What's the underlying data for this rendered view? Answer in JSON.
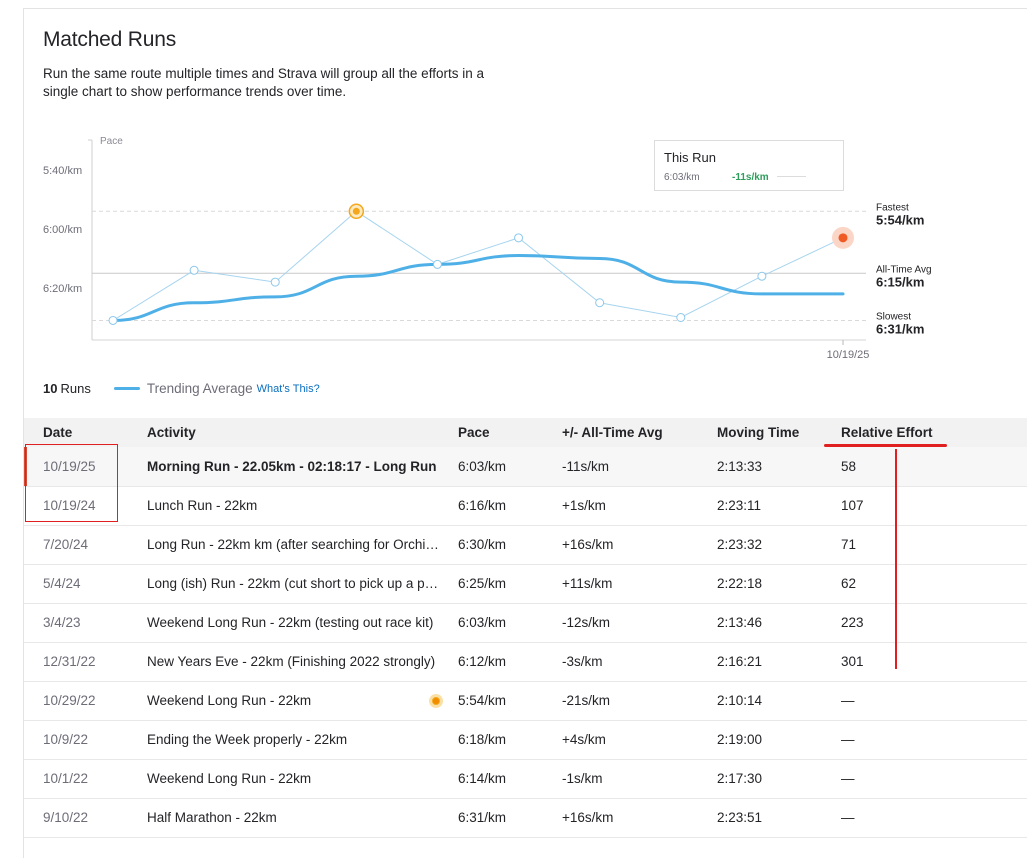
{
  "header": {
    "title": "Matched Runs",
    "description": "Run the same route multiple times and Strava will group all the efforts in a single chart to show performance trends over time."
  },
  "chart_data": {
    "type": "line",
    "ylabel": "Pace",
    "y_ticks": [
      "5:40/km",
      "6:00/km",
      "6:20/km"
    ],
    "x_end_label": "10/19/25",
    "y_unit": "seconds per km",
    "ylim_seconds": [
      330,
      400
    ],
    "x": [
      "9/10/22",
      "10/1/22",
      "10/9/22",
      "10/29/22",
      "12/31/22",
      "3/4/23",
      "5/4/24",
      "7/20/24",
      "10/19/24",
      "10/19/25"
    ],
    "series": [
      {
        "name": "Pace",
        "values": [
          391,
          374,
          378,
          354,
          372,
          363,
          385,
          390,
          376,
          363
        ],
        "highlight": {
          "fastest_index": 3,
          "current_index": 9
        }
      },
      {
        "name": "Trending Average",
        "values": [
          391,
          385,
          383,
          376,
          372,
          369,
          370,
          378,
          382,
          382
        ]
      }
    ],
    "reference_lines": [
      {
        "label": "Fastest",
        "value_text": "5:54/km",
        "seconds": 354
      },
      {
        "label": "All-Time Avg",
        "value_text": "6:15/km",
        "seconds": 375
      },
      {
        "label": "Slowest",
        "value_text": "6:31/km",
        "seconds": 391
      }
    ],
    "tooltip": {
      "title": "This Run",
      "pace": "6:03/km",
      "diff": "-11s/km"
    },
    "colors": {
      "trend": "#4eb0e6",
      "points": "#a6d4ef",
      "fastest": "#f4a81c",
      "current": "#f05a24",
      "diff": "#2e9e5b"
    }
  },
  "legend": {
    "runs_count": "10",
    "runs_label": "Runs",
    "trend_label": "Trending Average",
    "link_label": "What's This?"
  },
  "table": {
    "headers": [
      "Date",
      "Activity",
      "Pace",
      "+/- All-Time Avg",
      "Moving Time",
      "Relative Effort"
    ],
    "rows": [
      {
        "date": "10/19/25",
        "activity": "Morning Run - 22.05km - 02:18:17 - Long Run",
        "pace": "6:03/km",
        "diff": "-11s/km",
        "time": "2:13:33",
        "effort": "58",
        "current": true
      },
      {
        "date": "10/19/24",
        "activity": "Lunch Run - 22km",
        "pace": "6:16/km",
        "diff": "+1s/km",
        "time": "2:23:11",
        "effort": "107"
      },
      {
        "date": "7/20/24",
        "activity": "Long Run - 22km km (after searching for Orchi…",
        "pace": "6:30/km",
        "diff": "+16s/km",
        "time": "2:23:32",
        "effort": "71"
      },
      {
        "date": "5/4/24",
        "activity": "Long (ish) Run - 22km (cut short to pick up a p…",
        "pace": "6:25/km",
        "diff": "+11s/km",
        "time": "2:22:18",
        "effort": "62"
      },
      {
        "date": "3/4/23",
        "activity": "Weekend Long Run - 22km (testing out race kit)",
        "pace": "6:03/km",
        "diff": "-12s/km",
        "time": "2:13:46",
        "effort": "223"
      },
      {
        "date": "12/31/22",
        "activity": "New Years Eve - 22km (Finishing 2022 strongly)",
        "pace": "6:12/km",
        "diff": "-3s/km",
        "time": "2:16:21",
        "effort": "301"
      },
      {
        "date": "10/29/22",
        "activity": "Weekend Long Run - 22km",
        "pace": "5:54/km",
        "diff": "-21s/km",
        "time": "2:10:14",
        "effort": "—",
        "pr_icon": "pr-medal-icon"
      },
      {
        "date": "10/9/22",
        "activity": "Ending the Week properly - 22km",
        "pace": "6:18/km",
        "diff": "+4s/km",
        "time": "2:19:00",
        "effort": "—"
      },
      {
        "date": "10/1/22",
        "activity": "Weekend Long Run - 22km",
        "pace": "6:14/km",
        "diff": "-1s/km",
        "time": "2:17:30",
        "effort": "—"
      },
      {
        "date": "9/10/22",
        "activity": "Half Marathon - 22km",
        "pace": "6:31/km",
        "diff": "+16s/km",
        "time": "2:23:51",
        "effort": "—"
      }
    ]
  }
}
